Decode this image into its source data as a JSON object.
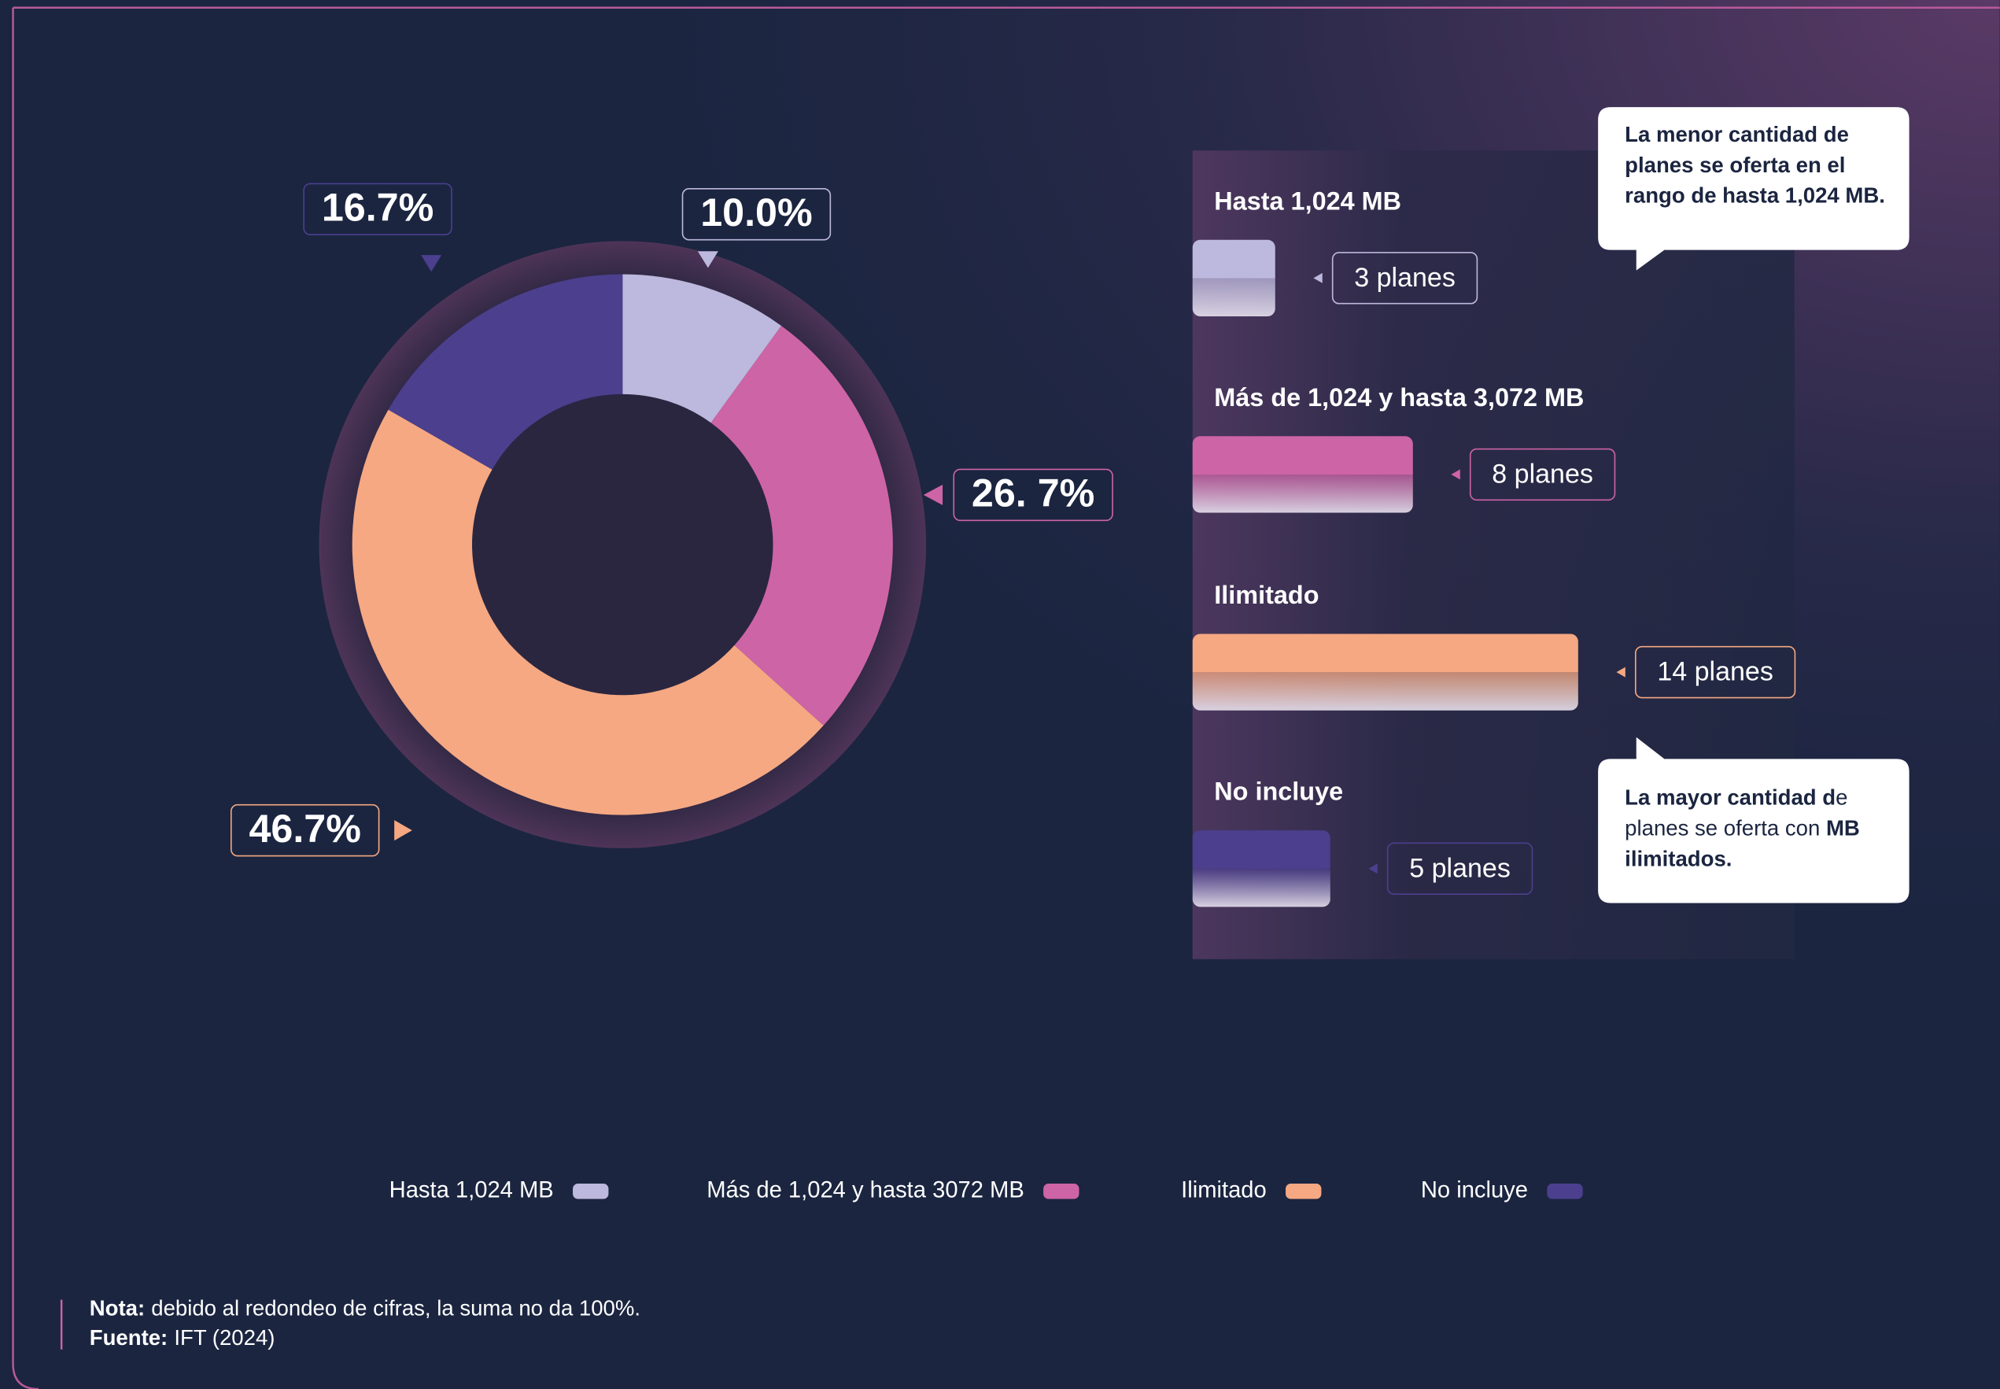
{
  "chart_data": [
    {
      "type": "pie",
      "donut": true,
      "categories": [
        "Hasta 1,024 MB",
        "Más de 1,024 y hasta 3072 MB",
        "Ilimitado",
        "No incluye"
      ],
      "values": [
        10.0,
        26.7,
        46.7,
        16.7
      ],
      "value_labels": [
        "10.0%",
        "26. 7%",
        "46.7%",
        "16.7%"
      ],
      "colors": [
        "#bdb8dd",
        "#cd64a6",
        "#f5a882",
        "#4b3f8e"
      ],
      "legend": "bottom"
    },
    {
      "type": "bar",
      "orientation": "horizontal",
      "categories": [
        "Hasta 1,024 MB",
        "Más de 1,024 y hasta 3,072 MB",
        "Ilimitado",
        "No incluye"
      ],
      "values": [
        3,
        8,
        14,
        5
      ],
      "value_labels": [
        "3 planes",
        "8 planes",
        "14 planes",
        "5 planes"
      ],
      "colors": [
        "#bdb8dd",
        "#cd64a6",
        "#f5a882",
        "#4b3f8e"
      ]
    }
  ],
  "annotations": [
    {
      "parts": [
        {
          "text": "La menor cantidad de planes se oferta en el rango de hasta 1,024 MB.",
          "bold": true
        }
      ]
    },
    {
      "parts": [
        {
          "text": "La mayor cantidad d",
          "bold": true
        },
        {
          "text": "e planes se oferta con ",
          "bold": false
        },
        {
          "text": "MB ilimitados.",
          "bold": true
        }
      ]
    }
  ],
  "notes": [
    {
      "label": "Nota:",
      "text": "debido al redondeo de cifras, la suma no da 100%."
    },
    {
      "label": "Fuente:",
      "text": "IFT (2024)"
    }
  ]
}
